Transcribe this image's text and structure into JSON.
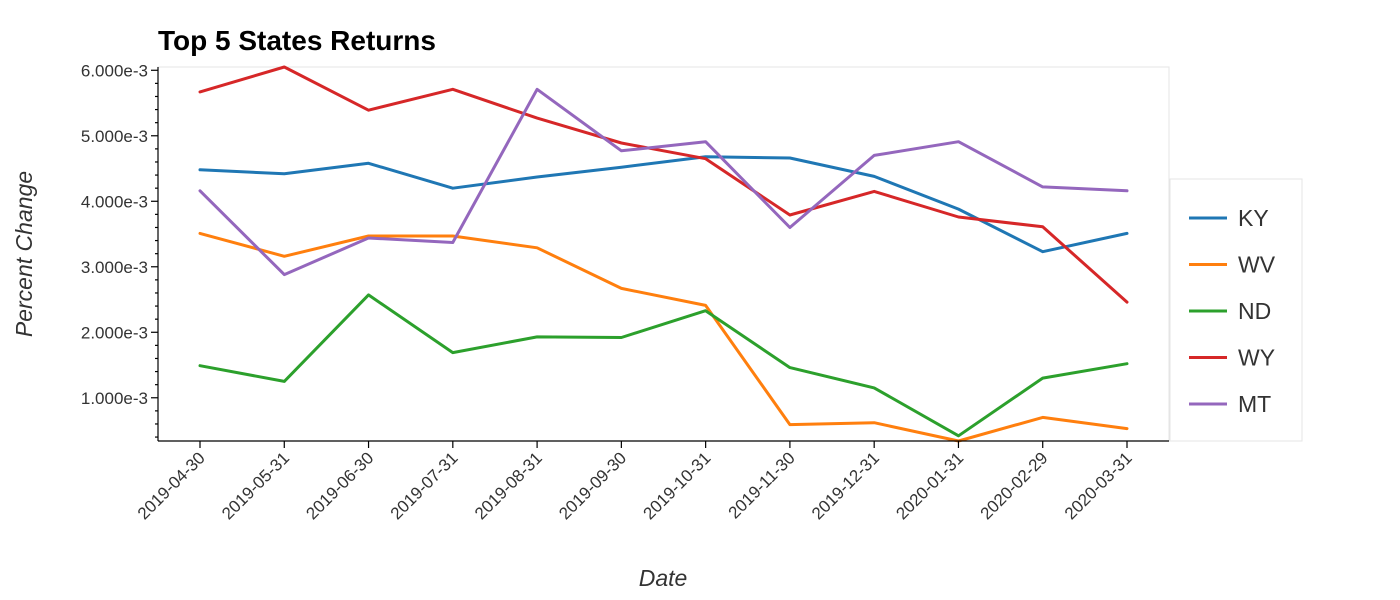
{
  "chart_data": {
    "type": "line",
    "title": "Top 5 States Returns",
    "xlabel": "Date",
    "ylabel": "Percent Change",
    "categories": [
      "2019-04-30",
      "2019-05-31",
      "2019-06-30",
      "2019-07-31",
      "2019-08-31",
      "2019-09-30",
      "2019-10-31",
      "2019-11-30",
      "2019-12-31",
      "2020-01-31",
      "2020-02-29",
      "2020-03-31"
    ],
    "ylim": [
      0.00034,
      0.00605
    ],
    "yticks": [
      0.001,
      0.002,
      0.003,
      0.004,
      0.005,
      0.006
    ],
    "ytick_labels": [
      "1.000e-3",
      "2.000e-3",
      "3.000e-3",
      "4.000e-3",
      "5.000e-3",
      "6.000e-3"
    ],
    "grid": false,
    "legend_position": "right",
    "series": [
      {
        "name": "KY",
        "color": "#1f77b4",
        "values": [
          0.00448,
          0.00442,
          0.00458,
          0.0042,
          0.00437,
          0.00452,
          0.00468,
          0.00466,
          0.00438,
          0.00388,
          0.00323,
          0.00351
        ]
      },
      {
        "name": "WV",
        "color": "#ff7f0e",
        "values": [
          0.00351,
          0.00316,
          0.00347,
          0.00347,
          0.00329,
          0.00267,
          0.00241,
          0.00059,
          0.00062,
          0.00034,
          0.0007,
          0.00053
        ]
      },
      {
        "name": "ND",
        "color": "#2ca02c",
        "values": [
          0.00149,
          0.00125,
          0.00257,
          0.00169,
          0.00193,
          0.00192,
          0.00233,
          0.00146,
          0.00115,
          0.00042,
          0.0013,
          0.00152
        ]
      },
      {
        "name": "WY",
        "color": "#d62728",
        "values": [
          0.00567,
          0.00605,
          0.00539,
          0.00571,
          0.00527,
          0.00489,
          0.00465,
          0.00379,
          0.00415,
          0.00376,
          0.00361,
          0.00246
        ]
      },
      {
        "name": "MT",
        "color": "#9467bd",
        "values": [
          0.00416,
          0.00288,
          0.00344,
          0.00337,
          0.00571,
          0.00477,
          0.00491,
          0.0036,
          0.0047,
          0.00491,
          0.00422,
          0.00416
        ]
      }
    ]
  }
}
